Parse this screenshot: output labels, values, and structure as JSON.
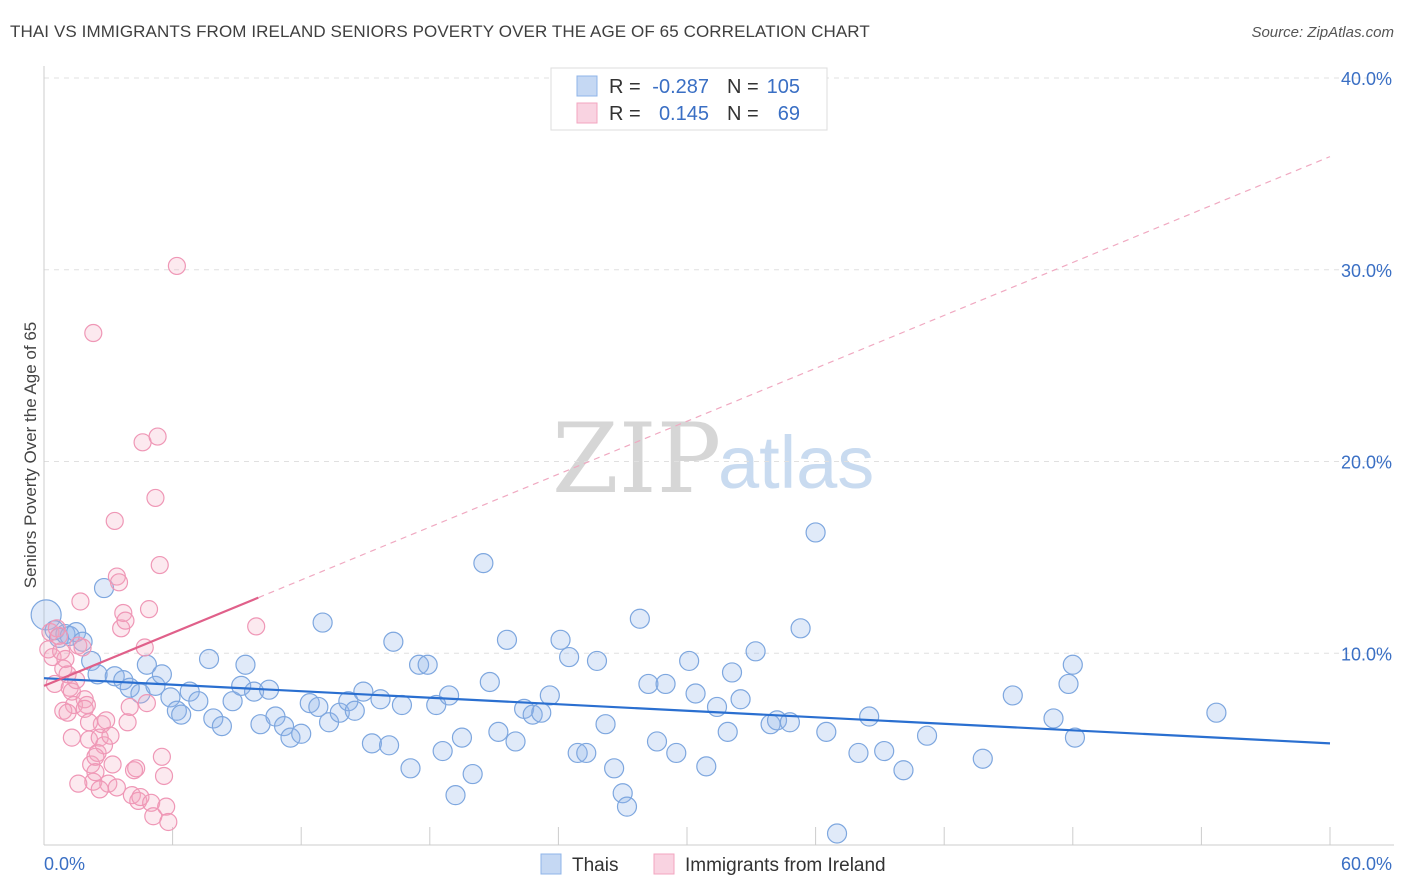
{
  "title": "THAI VS IMMIGRANTS FROM IRELAND SENIORS POVERTY OVER THE AGE OF 65 CORRELATION CHART",
  "source": "Source: ZipAtlas.com",
  "watermark": {
    "part1": "ZIP",
    "part2": "atlas"
  },
  "colors": {
    "blue": "#8fb4e8",
    "blue_line": "#2a6fd0",
    "pink": "#f3a6c0",
    "pink_line": "#e0608a",
    "axis_text": "#3a6fc4",
    "grid": "#e0e0e0"
  },
  "legend": {
    "rows": [
      {
        "r_label": "R =",
        "r_value": "-0.287",
        "n_label": "N =",
        "n_value": "105",
        "color": "#8fb4e8"
      },
      {
        "r_label": "R =",
        "r_value": "0.145",
        "n_label": "N =",
        "n_value": "69",
        "color": "#f3a6c0"
      }
    ]
  },
  "bottom_legend": [
    {
      "label": "Thais",
      "color": "#8fb4e8"
    },
    {
      "label": "Immigrants from Ireland",
      "color": "#f3a6c0"
    }
  ],
  "chart_data": {
    "type": "scatter",
    "title": "THAI VS IMMIGRANTS FROM IRELAND SENIORS POVERTY OVER THE AGE OF 65 CORRELATION CHART",
    "xlabel": "",
    "ylabel": "Seniors Poverty Over the Age of 65",
    "xlim": [
      0,
      60
    ],
    "ylim": [
      0,
      40
    ],
    "x_tick_labels": [
      "0.0%",
      "60.0%"
    ],
    "y_tick_labels": [
      "10.0%",
      "20.0%",
      "30.0%",
      "40.0%"
    ],
    "y_ticks": [
      10,
      20,
      30,
      40
    ],
    "grid": true,
    "legend_position": "top-center",
    "series": [
      {
        "name": "Thais",
        "color": "#8fb4e8",
        "trend": {
          "x": [
            0,
            60
          ],
          "y": [
            8.7,
            5.3
          ]
        },
        "points": [
          [
            0.1,
            12.0
          ],
          [
            0.5,
            11.2
          ],
          [
            0.7,
            10.8
          ],
          [
            1.0,
            11.0
          ],
          [
            1.2,
            10.9
          ],
          [
            1.5,
            11.1
          ],
          [
            1.8,
            10.6
          ],
          [
            2.2,
            9.6
          ],
          [
            2.5,
            8.9
          ],
          [
            2.8,
            13.4
          ],
          [
            3.3,
            8.8
          ],
          [
            3.7,
            8.6
          ],
          [
            4.0,
            8.2
          ],
          [
            4.5,
            7.9
          ],
          [
            4.8,
            9.4
          ],
          [
            5.2,
            8.3
          ],
          [
            5.5,
            8.9
          ],
          [
            5.9,
            7.7
          ],
          [
            6.2,
            7.0
          ],
          [
            6.4,
            6.8
          ],
          [
            6.8,
            8.0
          ],
          [
            7.2,
            7.5
          ],
          [
            7.7,
            9.7
          ],
          [
            7.9,
            6.6
          ],
          [
            8.3,
            6.2
          ],
          [
            8.8,
            7.5
          ],
          [
            9.2,
            8.3
          ],
          [
            9.4,
            9.4
          ],
          [
            9.8,
            8.0
          ],
          [
            10.1,
            6.3
          ],
          [
            10.5,
            8.1
          ],
          [
            10.8,
            6.7
          ],
          [
            11.2,
            6.2
          ],
          [
            11.5,
            5.6
          ],
          [
            12.0,
            5.8
          ],
          [
            12.4,
            7.4
          ],
          [
            12.8,
            7.2
          ],
          [
            13.0,
            11.6
          ],
          [
            13.3,
            6.4
          ],
          [
            13.8,
            6.9
          ],
          [
            14.2,
            7.5
          ],
          [
            14.5,
            7.0
          ],
          [
            14.9,
            8.0
          ],
          [
            15.3,
            5.3
          ],
          [
            15.7,
            7.6
          ],
          [
            16.1,
            5.2
          ],
          [
            16.3,
            10.6
          ],
          [
            16.7,
            7.3
          ],
          [
            17.1,
            4.0
          ],
          [
            17.5,
            9.4
          ],
          [
            17.9,
            9.4
          ],
          [
            18.3,
            7.3
          ],
          [
            18.6,
            4.9
          ],
          [
            18.9,
            7.8
          ],
          [
            19.2,
            2.6
          ],
          [
            19.5,
            5.6
          ],
          [
            20.0,
            3.7
          ],
          [
            20.5,
            14.7
          ],
          [
            20.8,
            8.5
          ],
          [
            21.2,
            5.9
          ],
          [
            21.6,
            10.7
          ],
          [
            22.0,
            5.4
          ],
          [
            22.4,
            7.1
          ],
          [
            22.8,
            6.8
          ],
          [
            23.2,
            6.9
          ],
          [
            23.6,
            7.8
          ],
          [
            24.1,
            10.7
          ],
          [
            24.5,
            9.8
          ],
          [
            24.9,
            4.8
          ],
          [
            25.3,
            4.8
          ],
          [
            25.8,
            9.6
          ],
          [
            26.2,
            6.3
          ],
          [
            26.6,
            4.0
          ],
          [
            27.0,
            2.7
          ],
          [
            27.2,
            2.0
          ],
          [
            27.8,
            11.8
          ],
          [
            28.2,
            8.4
          ],
          [
            28.6,
            5.4
          ],
          [
            29.0,
            8.4
          ],
          [
            29.5,
            4.8
          ],
          [
            30.1,
            9.6
          ],
          [
            30.4,
            7.9
          ],
          [
            30.9,
            4.1
          ],
          [
            31.4,
            7.2
          ],
          [
            31.9,
            5.9
          ],
          [
            32.1,
            9.0
          ],
          [
            32.5,
            7.6
          ],
          [
            33.2,
            10.1
          ],
          [
            33.9,
            6.3
          ],
          [
            34.2,
            6.5
          ],
          [
            34.8,
            6.4
          ],
          [
            35.3,
            11.3
          ],
          [
            36.0,
            16.3
          ],
          [
            36.5,
            5.9
          ],
          [
            37.0,
            0.6
          ],
          [
            38.0,
            4.8
          ],
          [
            38.5,
            6.7
          ],
          [
            39.2,
            4.9
          ],
          [
            40.1,
            3.9
          ],
          [
            41.2,
            5.7
          ],
          [
            43.8,
            4.5
          ],
          [
            45.2,
            7.8
          ],
          [
            47.1,
            6.6
          ],
          [
            47.8,
            8.4
          ],
          [
            48.0,
            9.4
          ],
          [
            48.1,
            5.6
          ],
          [
            54.7,
            6.9
          ]
        ]
      },
      {
        "name": "Immigrants from Ireland",
        "color": "#f3a6c0",
        "trend": {
          "x": [
            0,
            60
          ],
          "y": [
            8.3,
            35.9
          ],
          "solid_until": 10
        },
        "points": [
          [
            0.2,
            10.2
          ],
          [
            0.3,
            11.1
          ],
          [
            0.4,
            9.8
          ],
          [
            0.5,
            8.4
          ],
          [
            0.6,
            11.3
          ],
          [
            0.7,
            10.9
          ],
          [
            0.8,
            10.1
          ],
          [
            0.9,
            9.2
          ],
          [
            1.0,
            9.7
          ],
          [
            1.1,
            8.9
          ],
          [
            1.2,
            8.2
          ],
          [
            1.3,
            8.0
          ],
          [
            1.4,
            7.3
          ],
          [
            1.5,
            8.6
          ],
          [
            1.6,
            10.4
          ],
          [
            1.7,
            12.7
          ],
          [
            1.8,
            10.3
          ],
          [
            1.9,
            7.6
          ],
          [
            2.0,
            7.3
          ],
          [
            2.1,
            5.5
          ],
          [
            2.2,
            4.2
          ],
          [
            2.3,
            3.3
          ],
          [
            2.4,
            3.8
          ],
          [
            2.5,
            4.8
          ],
          [
            2.6,
            5.6
          ],
          [
            2.7,
            6.3
          ],
          [
            2.8,
            5.2
          ],
          [
            2.9,
            6.5
          ],
          [
            3.0,
            3.2
          ],
          [
            3.1,
            5.7
          ],
          [
            3.2,
            4.2
          ],
          [
            3.3,
            16.9
          ],
          [
            3.4,
            14.0
          ],
          [
            3.5,
            13.7
          ],
          [
            3.6,
            11.3
          ],
          [
            3.7,
            12.1
          ],
          [
            3.8,
            11.7
          ],
          [
            3.9,
            6.4
          ],
          [
            4.0,
            7.2
          ],
          [
            4.1,
            2.6
          ],
          [
            4.2,
            3.9
          ],
          [
            4.3,
            4.0
          ],
          [
            4.4,
            2.3
          ],
          [
            4.5,
            2.5
          ],
          [
            4.6,
            21.0
          ],
          [
            4.7,
            10.3
          ],
          [
            4.8,
            7.4
          ],
          [
            4.9,
            12.3
          ],
          [
            5.0,
            2.2
          ],
          [
            5.1,
            1.5
          ],
          [
            5.2,
            18.1
          ],
          [
            5.3,
            21.3
          ],
          [
            5.4,
            14.6
          ],
          [
            5.5,
            4.6
          ],
          [
            5.6,
            3.6
          ],
          [
            5.7,
            2.0
          ],
          [
            5.8,
            1.2
          ],
          [
            6.2,
            30.2
          ],
          [
            9.9,
            11.4
          ],
          [
            2.3,
            26.7
          ],
          [
            0.9,
            7.0
          ],
          [
            1.1,
            6.9
          ],
          [
            1.3,
            5.6
          ],
          [
            1.6,
            3.2
          ],
          [
            1.9,
            7.1
          ],
          [
            2.1,
            6.4
          ],
          [
            2.4,
            4.6
          ],
          [
            2.6,
            2.9
          ],
          [
            3.4,
            3.0
          ]
        ]
      }
    ]
  }
}
